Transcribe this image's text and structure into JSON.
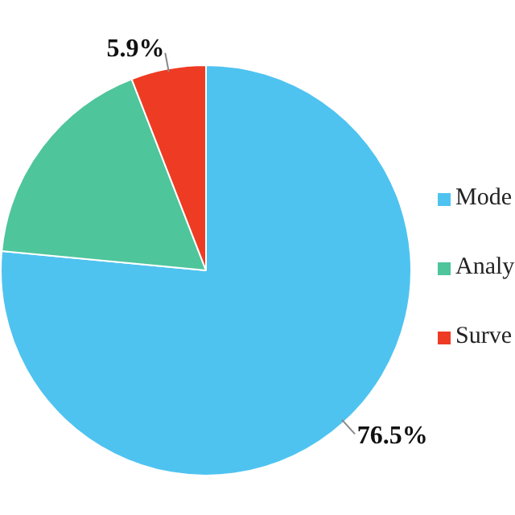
{
  "chart_data": {
    "type": "pie",
    "categories": [
      "Mode",
      "Analy",
      "Surve"
    ],
    "values": [
      76.5,
      17.6,
      5.9
    ],
    "colors": [
      "#4fc3f0",
      "#4ec59b",
      "#ee3b24"
    ],
    "value_labels": [
      "76.5%",
      null,
      "5.9%"
    ],
    "legend": "right"
  }
}
